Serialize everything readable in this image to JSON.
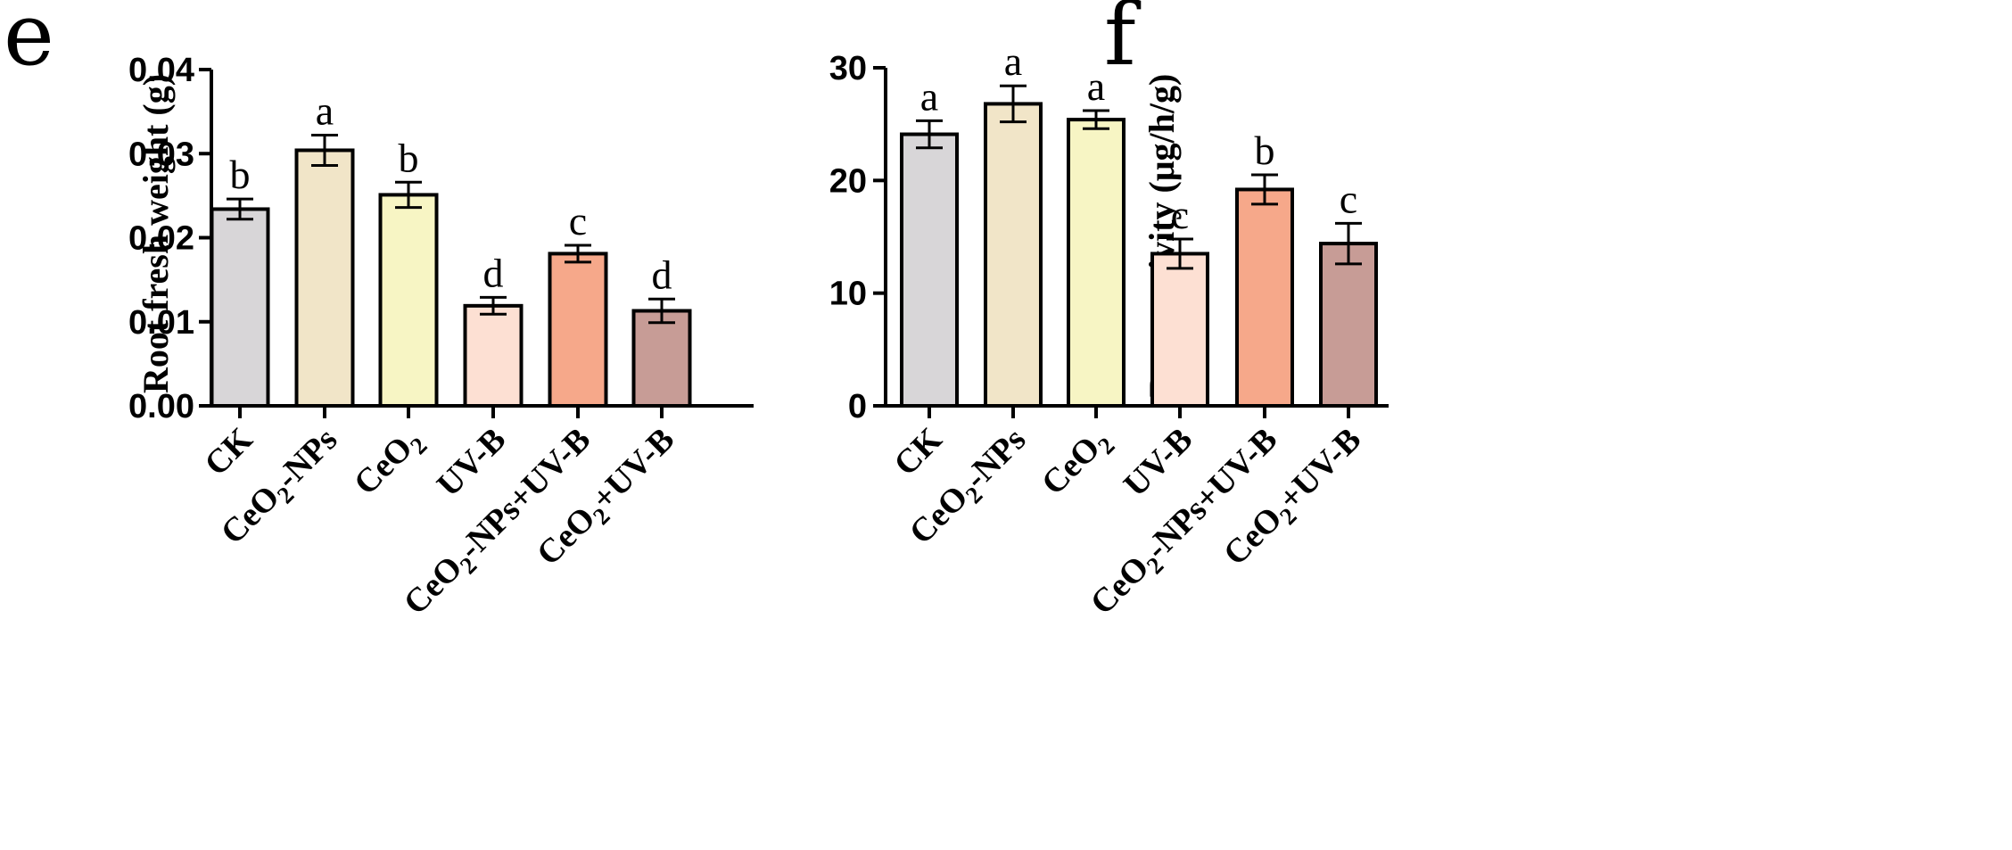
{
  "chart_data": [
    {
      "type": "bar",
      "panel": "e",
      "title": "",
      "xlabel": "",
      "ylabel": "Root fresh weight (g)",
      "ylim": [
        0,
        0.04
      ],
      "yticks": [
        "0.00",
        "0.01",
        "0.02",
        "0.03",
        "0.04"
      ],
      "ytick_values": [
        0,
        0.01,
        0.02,
        0.03,
        0.04
      ],
      "categories": [
        {
          "main": "CK",
          "sub": "",
          "rest": ""
        },
        {
          "main": "CeO",
          "sub": "2",
          "rest": "-NPs"
        },
        {
          "main": "CeO",
          "sub": "2",
          "rest": ""
        },
        {
          "main": "UV-B",
          "sub": "",
          "rest": ""
        },
        {
          "main": "CeO",
          "sub": "2",
          "rest": "-NPs+UV-B"
        },
        {
          "main": "CeO",
          "sub": "2",
          "rest": "+UV-B"
        }
      ],
      "values": [
        0.0234,
        0.0304,
        0.0251,
        0.0119,
        0.0181,
        0.0113
      ],
      "errors": [
        0.0012,
        0.0018,
        0.0015,
        0.001,
        0.001,
        0.0014
      ],
      "significance": [
        "b",
        "a",
        "b",
        "d",
        "c",
        "d"
      ],
      "colors": [
        "#d8d6d8",
        "#f1e5c8",
        "#f7f5c4",
        "#fde0d3",
        "#f6a88a",
        "#c79c96"
      ]
    },
    {
      "type": "bar",
      "panel": "f",
      "title": "",
      "xlabel": "",
      "ylabel": "Root activity (μg/h/g)",
      "ylim": [
        0,
        30
      ],
      "yticks": [
        "0",
        "10",
        "20",
        "30"
      ],
      "ytick_values": [
        0,
        10,
        20,
        30
      ],
      "categories": [
        {
          "main": "CK",
          "sub": "",
          "rest": ""
        },
        {
          "main": "CeO",
          "sub": "2",
          "rest": "-NPs"
        },
        {
          "main": "CeO",
          "sub": "2",
          "rest": ""
        },
        {
          "main": "UV-B",
          "sub": "",
          "rest": ""
        },
        {
          "main": "CeO",
          "sub": "2",
          "rest": "-NPs+UV-B"
        },
        {
          "main": "CeO",
          "sub": "2",
          "rest": "+UV-B"
        }
      ],
      "values": [
        24.1,
        26.8,
        25.4,
        13.5,
        19.2,
        14.4
      ],
      "errors": [
        1.2,
        1.6,
        0.8,
        1.3,
        1.3,
        1.8
      ],
      "significance": [
        "a",
        "a",
        "a",
        "c",
        "b",
        "c"
      ],
      "colors": [
        "#d8d6d8",
        "#f1e5c8",
        "#f7f5c4",
        "#fde0d3",
        "#f6a88a",
        "#c79c96"
      ]
    }
  ]
}
